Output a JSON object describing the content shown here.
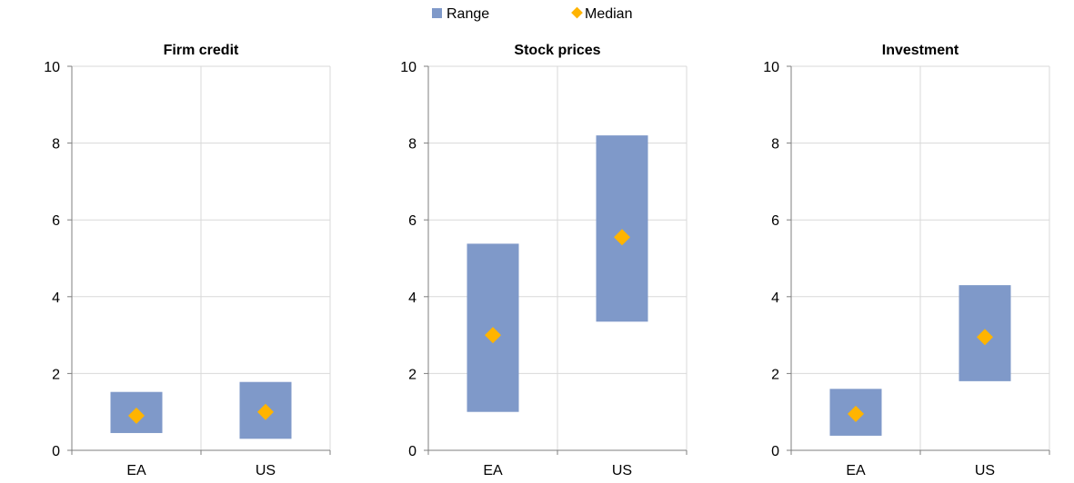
{
  "legend": {
    "range_label": "Range",
    "median_label": "Median"
  },
  "colors": {
    "range": "#7f99c9",
    "median": "#ffb400",
    "grid": "#d9d9d9",
    "axis": "#7f7f7f"
  },
  "chart_data": [
    {
      "type": "range-bar",
      "title": "Firm credit",
      "categories": [
        "EA",
        "US"
      ],
      "series": [
        {
          "name": "Range",
          "low": [
            0.45,
            0.3
          ],
          "high": [
            1.52,
            1.78
          ]
        },
        {
          "name": "Median",
          "values": [
            0.9,
            1.0
          ]
        }
      ],
      "ylim": [
        0,
        10
      ],
      "yticks": [
        "0",
        "2",
        "4",
        "6",
        "8",
        "10"
      ],
      "grid": true
    },
    {
      "type": "range-bar",
      "title": "Stock prices",
      "categories": [
        "EA",
        "US"
      ],
      "series": [
        {
          "name": "Range",
          "low": [
            1.0,
            3.35
          ],
          "high": [
            5.38,
            8.2
          ]
        },
        {
          "name": "Median",
          "values": [
            3.0,
            5.55
          ]
        }
      ],
      "ylim": [
        0,
        10
      ],
      "yticks": [
        "0",
        "2",
        "4",
        "6",
        "8",
        "10"
      ],
      "grid": true
    },
    {
      "type": "range-bar",
      "title": "Investment",
      "categories": [
        "EA",
        "US"
      ],
      "series": [
        {
          "name": "Range",
          "low": [
            0.38,
            1.8
          ],
          "high": [
            1.6,
            4.3
          ]
        },
        {
          "name": "Median",
          "values": [
            0.95,
            2.95
          ]
        }
      ],
      "ylim": [
        0,
        10
      ],
      "yticks": [
        "0",
        "2",
        "4",
        "6",
        "8",
        "10"
      ],
      "grid": true
    }
  ]
}
